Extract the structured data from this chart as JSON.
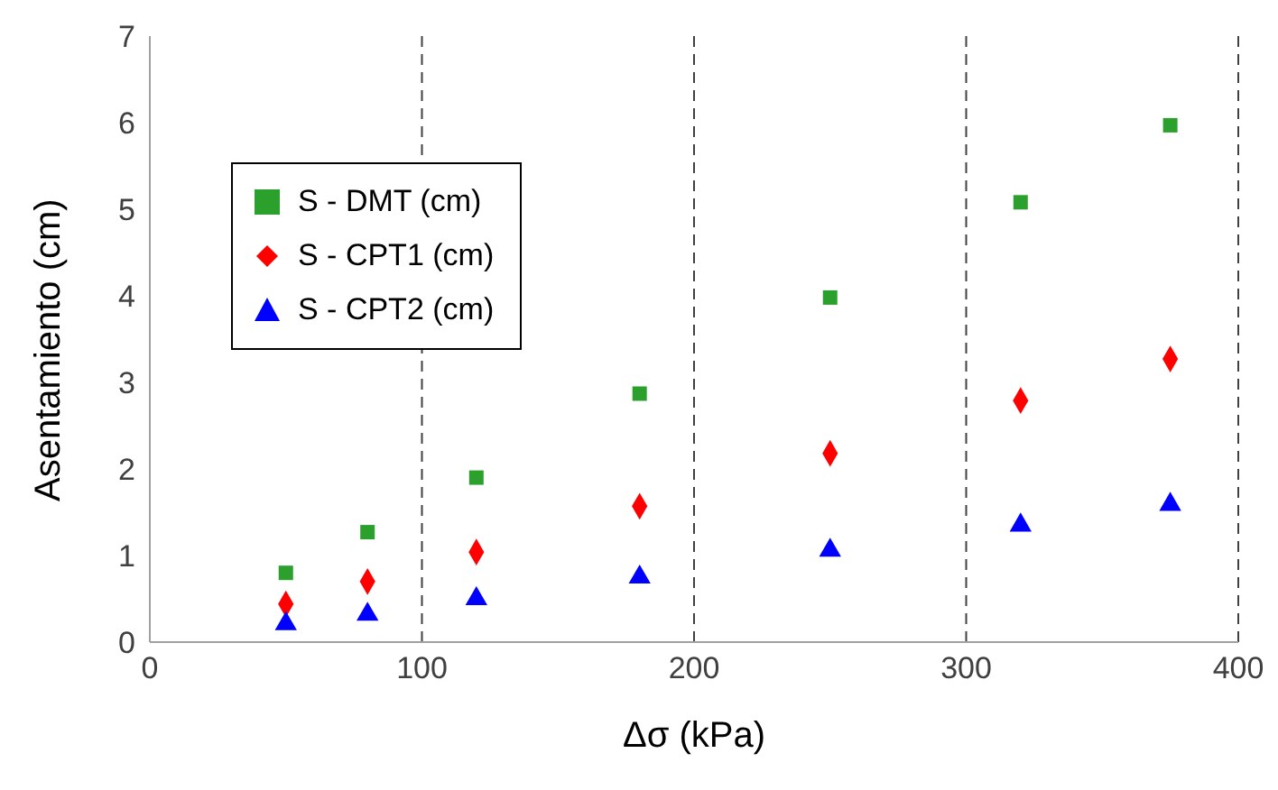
{
  "chart_data": {
    "type": "scatter",
    "xlabel": "Δσ (kPa)",
    "ylabel": "Asentamiento (cm)",
    "x": [
      50,
      80,
      120,
      180,
      250,
      320,
      375
    ],
    "series": [
      {
        "name": "S - DMT (cm)",
        "color": "#2ca02c",
        "marker": "square",
        "values": [
          0.8,
          1.27,
          1.9,
          2.87,
          3.98,
          5.08,
          5.97
        ]
      },
      {
        "name": "S - CPT1 (cm)",
        "color": "#ff0000",
        "marker": "diamond",
        "values": [
          0.44,
          0.7,
          1.04,
          1.57,
          2.18,
          2.79,
          3.27
        ]
      },
      {
        "name": "S - CPT2 (cm)",
        "color": "#0000ff",
        "marker": "triangle",
        "values": [
          0.21,
          0.32,
          0.5,
          0.75,
          1.06,
          1.35,
          1.59
        ]
      }
    ],
    "xlim": [
      0,
      400
    ],
    "xticks": [
      0,
      100,
      200,
      300,
      400
    ],
    "ylim": [
      0,
      7
    ],
    "yticks": [
      0,
      1,
      2,
      3,
      4,
      5,
      6,
      7
    ],
    "grid": "x",
    "legend": "top left"
  }
}
